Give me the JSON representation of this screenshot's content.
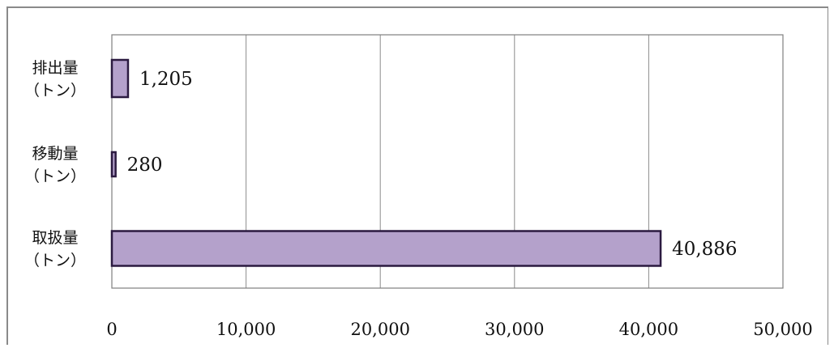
{
  "chart_data": {
    "type": "bar",
    "orientation": "horizontal",
    "title": "",
    "xlabel": "",
    "ylabel": "",
    "xlim": [
      0,
      50000
    ],
    "x_ticks": [
      0,
      10000,
      20000,
      30000,
      40000,
      50000
    ],
    "x_tick_labels": [
      "0",
      "10,000",
      "20,000",
      "30,000",
      "40,000",
      "50,000"
    ],
    "grid": "vertical",
    "legend": "none",
    "categories": [
      [
        "排出量",
        "（トン）"
      ],
      [
        "移動量",
        "（トン）"
      ],
      [
        "取扱量",
        "（トン）"
      ]
    ],
    "values": [
      1205,
      280,
      40886
    ],
    "data_labels": [
      "1,205",
      "280",
      "40,886"
    ],
    "colors": {
      "bar_fill": "#b4a1cb",
      "bar_stroke": "#2b1a40",
      "axis": "#7f7f7f",
      "grid": "#8c8c8c"
    }
  }
}
